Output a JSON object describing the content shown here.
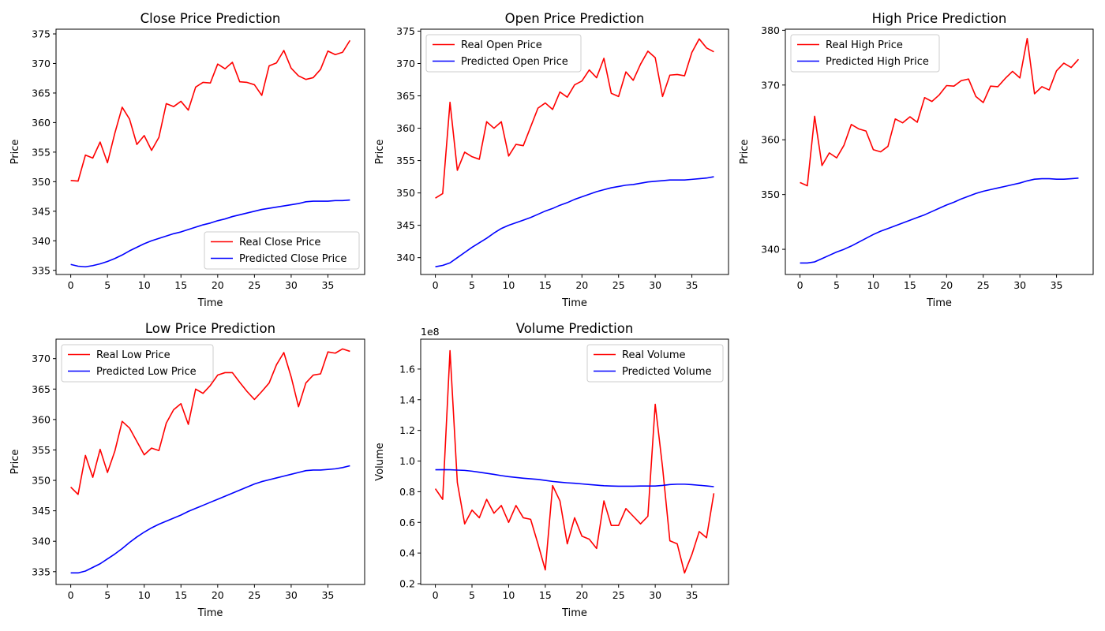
{
  "chart_data": [
    {
      "type": "line",
      "title": "Close Price Prediction",
      "xlabel": "Time",
      "ylabel": "Price",
      "xlim": [
        -2,
        40
      ],
      "ylim": [
        334.3,
        375.8
      ],
      "xticks": [
        0,
        5,
        10,
        15,
        20,
        25,
        30,
        35
      ],
      "yticks": [
        335,
        340,
        345,
        350,
        355,
        360,
        365,
        370,
        375
      ],
      "legend": "lower right",
      "series": [
        {
          "name": "Real Close Price",
          "color": "#ff0000",
          "values": [
            350.2,
            350.1,
            354.5,
            354.0,
            356.7,
            353.2,
            358.2,
            362.6,
            360.6,
            356.3,
            357.8,
            355.3,
            357.5,
            363.2,
            362.7,
            363.6,
            362.1,
            366.0,
            366.8,
            366.7,
            369.9,
            369.1,
            370.2,
            366.9,
            366.8,
            366.4,
            364.6,
            369.6,
            370.1,
            372.2,
            369.2,
            367.9,
            367.3,
            367.6,
            369.0,
            372.1,
            371.5,
            371.9,
            373.9
          ]
        },
        {
          "name": "Predicted Close Price",
          "color": "#0000ff",
          "values": [
            336.0,
            335.7,
            335.6,
            335.8,
            336.1,
            336.5,
            337.0,
            337.6,
            338.3,
            338.9,
            339.5,
            340.0,
            340.4,
            340.8,
            341.2,
            341.5,
            341.9,
            342.3,
            342.7,
            343.0,
            343.4,
            343.7,
            344.1,
            344.4,
            344.7,
            345.0,
            345.3,
            345.5,
            345.7,
            345.9,
            346.1,
            346.3,
            346.6,
            346.7,
            346.7,
            346.7,
            346.8,
            346.8,
            346.9
          ]
        }
      ]
    },
    {
      "type": "line",
      "title": "Open Price Prediction",
      "xlabel": "Time",
      "ylabel": "Price",
      "xlim": [
        -2,
        40
      ],
      "ylim": [
        337.4,
        375.3
      ],
      "xticks": [
        0,
        5,
        10,
        15,
        20,
        25,
        30,
        35
      ],
      "yticks": [
        340,
        345,
        350,
        355,
        360,
        365,
        370,
        375
      ],
      "legend": "upper left",
      "series": [
        {
          "name": "Real Open Price",
          "color": "#ff0000",
          "values": [
            349.2,
            349.9,
            364.0,
            353.5,
            356.3,
            355.6,
            355.2,
            361.0,
            360.0,
            361.0,
            355.7,
            357.5,
            357.3,
            360.2,
            363.1,
            363.9,
            362.9,
            365.6,
            364.8,
            366.7,
            367.3,
            369.0,
            367.8,
            370.8,
            365.4,
            364.9,
            368.7,
            367.4,
            369.9,
            371.9,
            370.9,
            364.9,
            368.2,
            368.3,
            368.1,
            371.7,
            373.8,
            372.4,
            371.8
          ]
        },
        {
          "name": "Predicted Open Price",
          "color": "#0000ff",
          "values": [
            338.6,
            338.8,
            339.2,
            340.0,
            340.8,
            341.6,
            342.3,
            343.0,
            343.8,
            344.5,
            345.0,
            345.4,
            345.8,
            346.2,
            346.7,
            347.2,
            347.6,
            348.1,
            348.5,
            349.0,
            349.4,
            349.8,
            350.2,
            350.5,
            350.8,
            351.0,
            351.2,
            351.3,
            351.5,
            351.7,
            351.8,
            351.9,
            352.0,
            352.0,
            352.0,
            352.1,
            352.2,
            352.3,
            352.5
          ]
        }
      ]
    },
    {
      "type": "line",
      "title": "High Price Prediction",
      "xlabel": "Time",
      "ylabel": "Price",
      "xlim": [
        -2,
        40
      ],
      "ylim": [
        335.4,
        380.2
      ],
      "xticks": [
        0,
        5,
        10,
        15,
        20,
        25,
        30,
        35
      ],
      "yticks": [
        340,
        350,
        360,
        370,
        380
      ],
      "legend": "upper left",
      "series": [
        {
          "name": "Real High Price",
          "color": "#ff0000",
          "values": [
            352.2,
            351.6,
            364.3,
            355.3,
            357.6,
            356.7,
            359.0,
            362.8,
            362.0,
            361.6,
            358.2,
            357.8,
            358.8,
            363.8,
            363.1,
            364.2,
            363.2,
            367.7,
            367.0,
            368.2,
            369.9,
            369.8,
            370.8,
            371.1,
            367.9,
            366.8,
            369.8,
            369.7,
            371.2,
            372.5,
            371.3,
            378.5,
            368.4,
            369.7,
            369.1,
            372.6,
            374.0,
            373.2,
            374.7
          ]
        },
        {
          "name": "Predicted High Price",
          "color": "#0000ff",
          "values": [
            337.5,
            337.5,
            337.7,
            338.3,
            338.9,
            339.5,
            340.0,
            340.6,
            341.3,
            342.0,
            342.7,
            343.3,
            343.8,
            344.3,
            344.8,
            345.3,
            345.8,
            346.3,
            346.9,
            347.5,
            348.1,
            348.6,
            349.2,
            349.7,
            350.2,
            350.6,
            350.9,
            351.2,
            351.5,
            351.8,
            352.1,
            352.5,
            352.8,
            352.9,
            352.9,
            352.8,
            352.8,
            352.9,
            353.0
          ]
        }
      ]
    },
    {
      "type": "line",
      "title": "Low Price Prediction",
      "xlabel": "Time",
      "ylabel": "Price",
      "xlim": [
        -2,
        40
      ],
      "ylim": [
        332.9,
        373.2
      ],
      "xticks": [
        0,
        5,
        10,
        15,
        20,
        25,
        30,
        35
      ],
      "yticks": [
        335,
        340,
        345,
        350,
        355,
        360,
        365,
        370
      ],
      "legend": "upper left",
      "series": [
        {
          "name": "Real Low Price",
          "color": "#ff0000",
          "values": [
            348.9,
            347.7,
            354.1,
            350.5,
            355.1,
            351.3,
            354.8,
            359.7,
            358.6,
            356.4,
            354.2,
            355.3,
            354.9,
            359.4,
            361.6,
            362.6,
            359.2,
            365.0,
            364.3,
            365.6,
            367.3,
            367.7,
            367.7,
            366.1,
            364.6,
            363.3,
            364.6,
            366.0,
            369.0,
            371.0,
            367.0,
            362.1,
            366.0,
            367.3,
            367.5,
            371.1,
            370.9,
            371.6,
            371.2
          ]
        },
        {
          "name": "Predicted Low Price",
          "color": "#0000ff",
          "values": [
            334.8,
            334.8,
            335.1,
            335.7,
            336.3,
            337.1,
            337.9,
            338.8,
            339.8,
            340.7,
            341.5,
            342.2,
            342.8,
            343.3,
            343.8,
            344.3,
            344.9,
            345.4,
            345.9,
            346.4,
            346.9,
            347.4,
            347.9,
            348.4,
            348.9,
            349.4,
            349.8,
            350.1,
            350.4,
            350.7,
            351.0,
            351.3,
            351.6,
            351.7,
            351.7,
            351.8,
            351.9,
            352.1,
            352.4
          ]
        }
      ]
    },
    {
      "type": "line",
      "title": "Volume Prediction",
      "xlabel": "Time",
      "ylabel": "Volume",
      "offset_label": "1e8",
      "xlim": [
        -2,
        40
      ],
      "ylim": [
        0.195,
        1.795
      ],
      "xticks": [
        0,
        5,
        10,
        15,
        20,
        25,
        30,
        35
      ],
      "yticks": [
        0.2,
        0.4,
        0.6,
        0.8,
        1.0,
        1.2,
        1.4,
        1.6
      ],
      "legend": "upper right",
      "series": [
        {
          "name": "Real Volume",
          "color": "#ff0000",
          "values": [
            0.82,
            0.75,
            1.72,
            0.86,
            0.59,
            0.68,
            0.63,
            0.75,
            0.66,
            0.71,
            0.6,
            0.71,
            0.63,
            0.62,
            0.46,
            0.29,
            0.84,
            0.74,
            0.46,
            0.63,
            0.51,
            0.49,
            0.43,
            0.74,
            0.58,
            0.58,
            0.69,
            0.64,
            0.59,
            0.64,
            1.37,
            0.96,
            0.48,
            0.46,
            0.27,
            0.39,
            0.54,
            0.5,
            0.79
          ]
        },
        {
          "name": "Predicted Volume",
          "color": "#0000ff",
          "values": [
            0.943,
            0.944,
            0.943,
            0.941,
            0.939,
            0.934,
            0.927,
            0.92,
            0.913,
            0.905,
            0.898,
            0.893,
            0.888,
            0.884,
            0.88,
            0.874,
            0.867,
            0.862,
            0.858,
            0.855,
            0.851,
            0.847,
            0.843,
            0.839,
            0.837,
            0.836,
            0.836,
            0.836,
            0.837,
            0.837,
            0.837,
            0.841,
            0.847,
            0.849,
            0.849,
            0.846,
            0.842,
            0.838,
            0.833
          ]
        }
      ]
    }
  ]
}
